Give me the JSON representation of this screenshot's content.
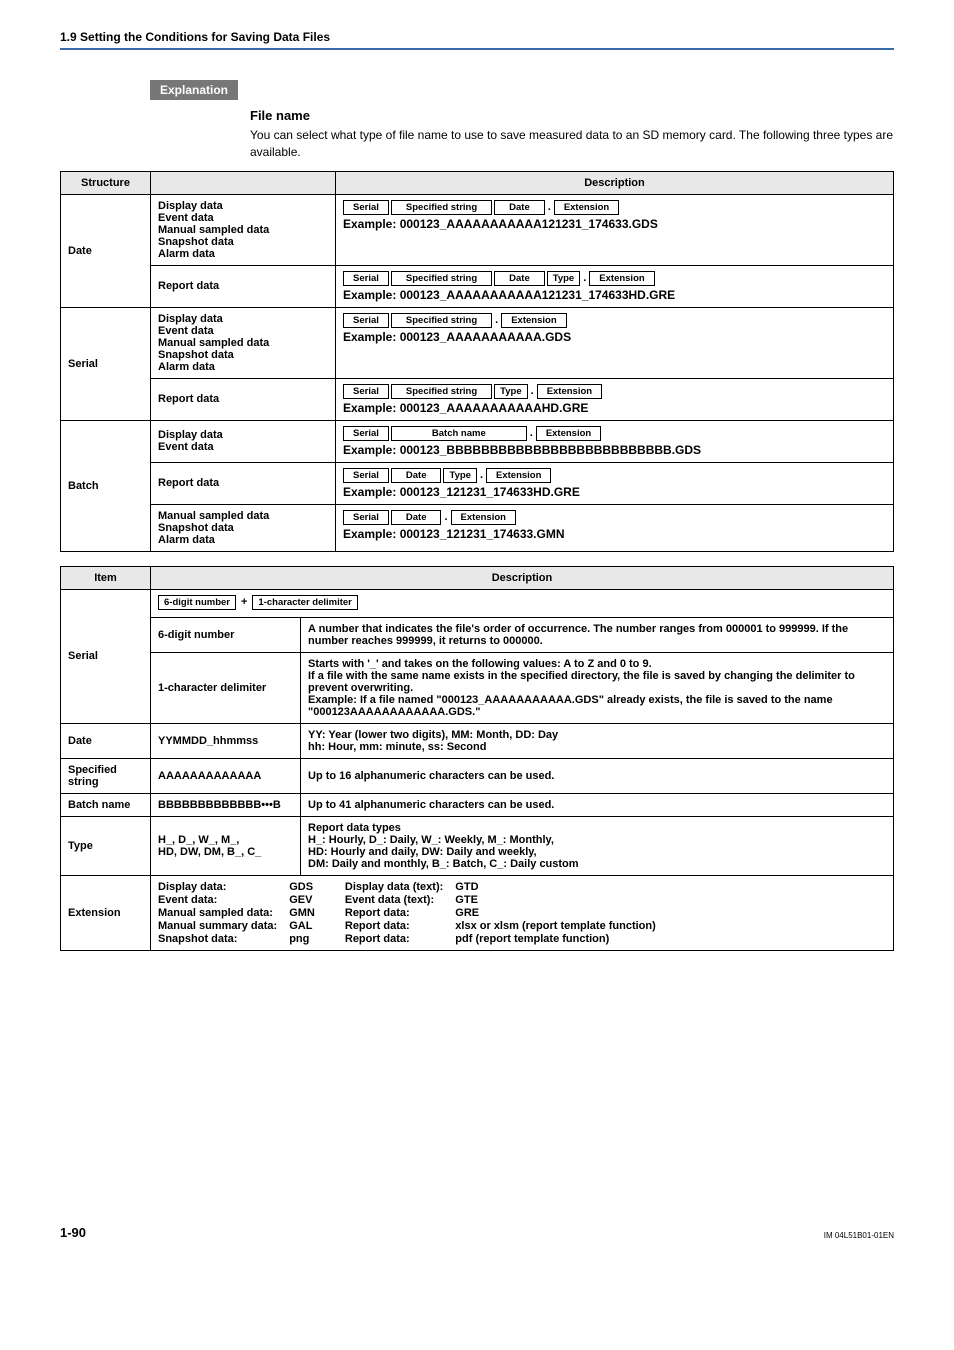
{
  "header": {
    "section": "1.9  Setting the Conditions for Saving Data Files",
    "border_color": "#3a6aa8"
  },
  "tag": {
    "label": "Explanation",
    "bg": "#777777",
    "fg": "#ffffff"
  },
  "sub": {
    "title": "File name",
    "para": "You can select what type of file name to use to save measured data to an SD memory card. The following three types are available."
  },
  "table1": {
    "headers": {
      "structure": "Structure",
      "description": "Description"
    },
    "date": {
      "label": "Date",
      "row1": {
        "types": "Display data\nEvent data\nManual sampled data\nSnapshot data\nAlarm data",
        "parts": [
          "Serial",
          "Specified string",
          "Date",
          "Extension"
        ],
        "example": "Example: 000123_AAAAAAAAAAA121231_174633.GDS"
      },
      "row2": {
        "types": "Report data",
        "parts": [
          "Serial",
          "Specified string",
          "Date",
          "Type",
          "Extension"
        ],
        "example": "Example: 000123_AAAAAAAAAAA121231_174633HD.GRE"
      }
    },
    "serial": {
      "label": "Serial",
      "row1": {
        "types": "Display data\nEvent data\nManual sampled data\nSnapshot data\nAlarm data",
        "parts": [
          "Serial",
          "Specified string",
          "Extension"
        ],
        "example": "Example: 000123_AAAAAAAAAAA.GDS"
      },
      "row2": {
        "types": "Report data",
        "parts": [
          "Serial",
          "Specified string",
          "Type",
          "Extension"
        ],
        "example": "Example: 000123_AAAAAAAAAAAHD.GRE"
      }
    },
    "batch": {
      "label": "Batch",
      "row1": {
        "types": "Display data\nEvent data",
        "parts": [
          "Serial",
          "Batch name",
          "Extension"
        ],
        "example": "Example: 000123_BBBBBBBBBBBBBBBBBBBBBBBBBB.GDS"
      },
      "row2": {
        "types": "Report data",
        "parts": [
          "Serial",
          "Date",
          "Type",
          "Extension"
        ],
        "example": "Example: 000123_121231_174633HD.GRE"
      },
      "row3": {
        "types": "Manual sampled data\nSnapshot data\nAlarm data",
        "parts": [
          "Serial",
          "Date",
          "Extension"
        ],
        "example": "Example: 000123_121231_174633.GMN"
      }
    }
  },
  "table2": {
    "headers": {
      "item": "Item",
      "description": "Description"
    },
    "serial": {
      "label": "Serial",
      "top": {
        "parts": [
          "6-digit number",
          "1-character delimiter"
        ]
      },
      "r1": {
        "name": "6-digit number",
        "desc": "A number that indicates the file's order of occurrence. The number ranges from 000001 to 999999. If the number reaches 999999, it returns to 000000."
      },
      "r2": {
        "name": "1-character delimiter",
        "desc": "Starts with '_' and takes on the following values: A to Z and 0 to 9.\nIf a file with the same name exists in the specified directory, the file is saved by changing the delimiter to prevent overwriting.\nExample: If a file named \"000123_AAAAAAAAAAA.GDS\" already exists, the file is saved to the name \"000123AAAAAAAAAAAA.GDS.\""
      }
    },
    "date": {
      "label": "Date",
      "val": "YYMMDD_hhmmss",
      "desc": "YY: Year (lower two digits), MM: Month, DD: Day\nhh: Hour, mm: minute, ss: Second"
    },
    "specstr": {
      "label": "Specified string",
      "val": "AAAAAAAAAAAAA",
      "desc": "Up to 16 alphanumeric characters can be used."
    },
    "batchname": {
      "label": "Batch name",
      "val": "BBBBBBBBBBBBB•••B",
      "desc": "Up to 41 alphanumeric characters can be used."
    },
    "type": {
      "label": "Type",
      "val": "H_, D_, W_, M_,\nHD, DW, DM, B_, C_",
      "desc": "Report data types\nH_: Hourly, D_: Daily, W_: Weekly, M_: Monthly,\nHD: Hourly and daily, DW: Daily and weekly,\nDM: Daily and monthly, B_: Batch, C_: Daily custom"
    },
    "ext": {
      "label": "Extension",
      "left": {
        "k1": "Display data:",
        "v1": "GDS",
        "k2": "Event data:",
        "v2": "GEV",
        "k3": "Manual sampled data:",
        "v3": "GMN",
        "k4": "Manual summary data:",
        "v4": "GAL",
        "k5": "Snapshot data:",
        "v5": "png"
      },
      "right": {
        "k1": "Display data (text):",
        "v1": "GTD",
        "k2": "Event data (text):",
        "v2": "GTE",
        "k3": "Report data:",
        "v3": "GRE",
        "k4": "Report data:",
        "v4": "xlsx or xlsm (report template function)",
        "k5": "Report data:",
        "v5": "pdf (report template function)"
      }
    }
  },
  "footer": {
    "page": "1-90",
    "doc": "IM 04L51B01-01EN"
  }
}
